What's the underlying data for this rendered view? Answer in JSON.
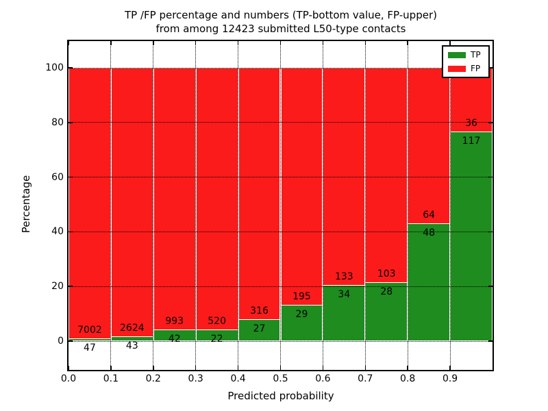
{
  "title": {
    "line1": "TP /FP percentage and numbers (TP-bottom value, FP-upper)",
    "line2": "from among 12423 submitted L50-type contacts"
  },
  "axes": {
    "xlabel": "Predicted probability",
    "ylabel": "Percentage"
  },
  "legend": {
    "position": "upper right",
    "items": [
      {
        "label": "TP",
        "color": "#1e8c1e"
      },
      {
        "label": "FP",
        "color": "#fb1b1b"
      }
    ]
  },
  "colors": {
    "tp_green": "#1e8c1e",
    "fp_red": "#fb1b1b",
    "bar_edge": "#ffffff",
    "grid": "#000000",
    "background": "#ffffff"
  },
  "chart_data": {
    "type": "bar",
    "subtype": "stacked-normalized-percentage",
    "title": "TP /FP percentage and numbers (TP-bottom value, FP-upper) from among 12423 submitted L50-type contacts",
    "xlabel": "Predicted probability",
    "ylabel": "Percentage",
    "total_submitted_contacts": 12423,
    "bin_edges": [
      0.0,
      0.1,
      0.2,
      0.3,
      0.4,
      0.5,
      0.6,
      0.7,
      0.8,
      0.9,
      1.0
    ],
    "categories": [
      "0.0-0.1",
      "0.1-0.2",
      "0.2-0.3",
      "0.3-0.4",
      "0.4-0.5",
      "0.5-0.6",
      "0.6-0.7",
      "0.7-0.8",
      "0.8-0.9",
      "0.9-1.0"
    ],
    "series": [
      {
        "name": "TP",
        "color": "#1e8c1e",
        "counts": [
          47,
          43,
          42,
          22,
          27,
          29,
          34,
          28,
          48,
          117
        ]
      },
      {
        "name": "FP",
        "color": "#fb1b1b",
        "counts": [
          7002,
          2624,
          993,
          520,
          316,
          195,
          133,
          103,
          64,
          36
        ]
      }
    ],
    "tp_percent_of_bin": [
      0.67,
      1.61,
      4.06,
      4.06,
      7.87,
      12.95,
      20.36,
      21.37,
      42.86,
      76.47
    ],
    "bar_total_percent": 100,
    "x_ticks": [
      "0.0",
      "0.1",
      "0.2",
      "0.3",
      "0.4",
      "0.5",
      "0.6",
      "0.7",
      "0.8",
      "0.9"
    ],
    "y_ticks": [
      0,
      20,
      40,
      60,
      80,
      100
    ],
    "xlim": [
      0.0,
      1.0
    ],
    "ylim": [
      -10.8,
      109.8
    ],
    "grid": true,
    "grid_style": "dotted",
    "grid_above_bars": true,
    "legend_position": "upper right"
  }
}
